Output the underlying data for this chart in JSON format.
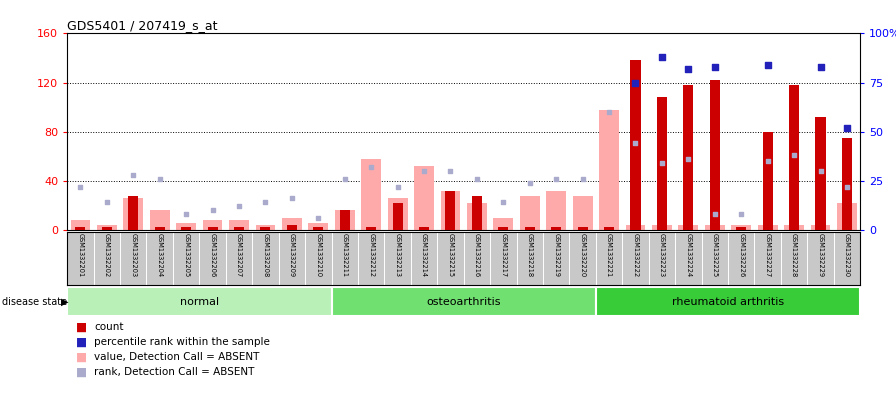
{
  "title": "GDS5401 / 207419_s_at",
  "samples": [
    "GSM1332201",
    "GSM1332202",
    "GSM1332203",
    "GSM1332204",
    "GSM1332205",
    "GSM1332206",
    "GSM1332207",
    "GSM1332208",
    "GSM1332209",
    "GSM1332210",
    "GSM1332211",
    "GSM1332212",
    "GSM1332213",
    "GSM1332214",
    "GSM1332215",
    "GSM1332216",
    "GSM1332217",
    "GSM1332218",
    "GSM1332219",
    "GSM1332220",
    "GSM1332221",
    "GSM1332222",
    "GSM1332223",
    "GSM1332224",
    "GSM1332225",
    "GSM1332226",
    "GSM1332227",
    "GSM1332228",
    "GSM1332229",
    "GSM1332230"
  ],
  "groups": [
    {
      "label": "normal",
      "start": 0,
      "end": 9,
      "color": "#b8f0b8"
    },
    {
      "label": "osteoarthritis",
      "start": 10,
      "end": 19,
      "color": "#70e070"
    },
    {
      "label": "rheumatoid arthritis",
      "start": 20,
      "end": 29,
      "color": "#38cc38"
    }
  ],
  "count_vals": [
    2,
    2,
    28,
    2,
    2,
    2,
    2,
    2,
    4,
    2,
    16,
    2,
    22,
    2,
    32,
    28,
    2,
    2,
    2,
    2,
    2,
    138,
    108,
    118,
    122,
    2,
    80,
    118,
    92,
    75
  ],
  "pct_rank_vals": [
    null,
    null,
    null,
    null,
    null,
    null,
    null,
    null,
    null,
    null,
    null,
    null,
    null,
    null,
    null,
    null,
    null,
    null,
    null,
    null,
    null,
    75,
    88,
    82,
    83,
    null,
    84,
    null,
    83,
    52
  ],
  "absent_value_vals": [
    8,
    4,
    26,
    16,
    6,
    8,
    8,
    4,
    10,
    6,
    16,
    58,
    26,
    52,
    32,
    22,
    10,
    28,
    32,
    28,
    98,
    4,
    4,
    4,
    4,
    4,
    4,
    4,
    4,
    22
  ],
  "absent_rank_vals": [
    22,
    14,
    28,
    26,
    8,
    10,
    12,
    14,
    16,
    6,
    26,
    32,
    22,
    30,
    30,
    26,
    14,
    24,
    26,
    26,
    60,
    44,
    34,
    36,
    8,
    8,
    35,
    38,
    30,
    22
  ],
  "ylim_left": [
    0,
    160
  ],
  "ylim_right": [
    0,
    100
  ],
  "yticks_left": [
    0,
    40,
    80,
    120,
    160
  ],
  "yticks_right": [
    0,
    25,
    50,
    75,
    100
  ],
  "hlines": [
    40,
    80,
    120
  ],
  "bar_red": "#cc0000",
  "bar_pink": "#ffaaaa",
  "dot_blue": "#2222bb",
  "dot_lblue": "#aaaacc"
}
